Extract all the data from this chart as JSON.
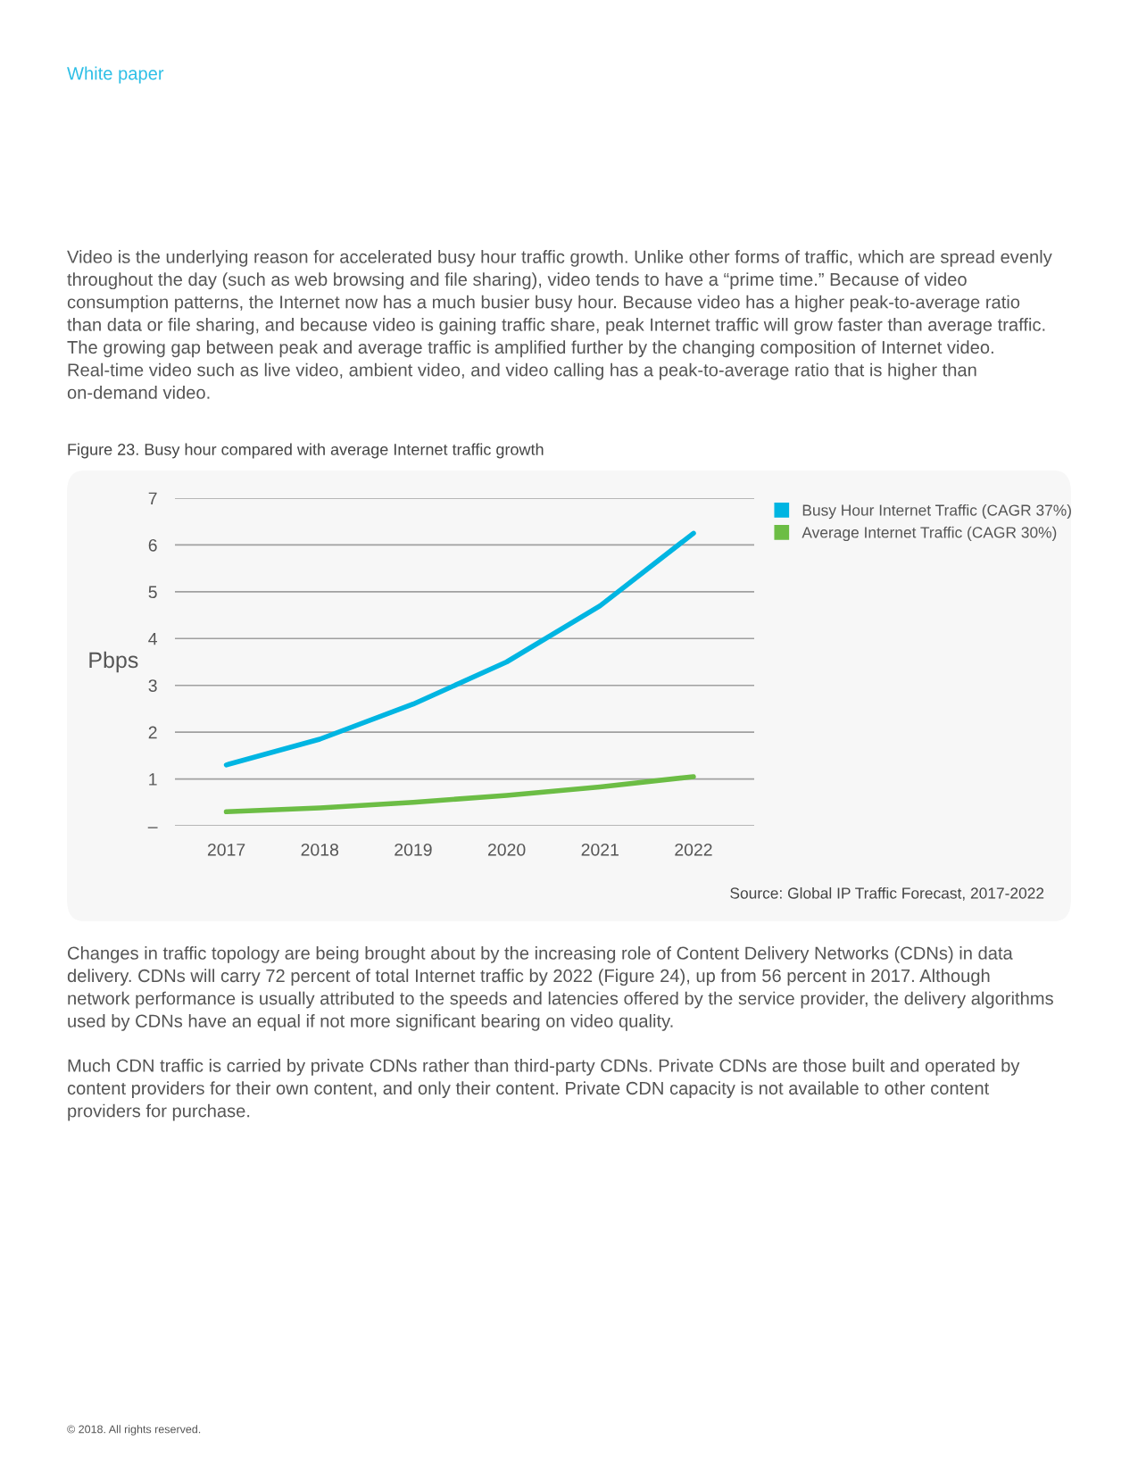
{
  "chart_data": {
    "type": "line",
    "title": "Figure 23. Busy hour compared with average Internet traffic growth",
    "ylabel": "Pbps",
    "categories": [
      "2017",
      "2018",
      "2019",
      "2020",
      "2021",
      "2022"
    ],
    "series": [
      {
        "name": "Busy Hour Internet Traffic (CAGR 37%)",
        "color": "#00b5e2",
        "values": [
          1.3,
          1.85,
          2.6,
          3.5,
          4.7,
          6.25
        ]
      },
      {
        "name": "Average Internet Traffic (CAGR 30%)",
        "color": "#6cbd45",
        "values": [
          0.3,
          0.38,
          0.5,
          0.65,
          0.83,
          1.05
        ]
      }
    ],
    "ylim": [
      0,
      7
    ],
    "yticks": [
      {
        "value": 0,
        "label": "–"
      },
      1,
      2,
      3,
      4,
      5,
      6,
      7
    ],
    "grid": "y",
    "legend": "top right",
    "marker": "none",
    "line_style": "solid",
    "annotations": [
      "White paper",
      "Video is the underlying reason for accelerated busy hour traffic growth. Unlike other forms of traffic, which are spread evenly throughout the day (such as web browsing and file sharing), video tends to have a “prime time.” Because of video consumption patterns, the Internet now has a much busier busy hour. Because video has a higher peak-to-average ratio than data or file sharing, and because video is gaining traffic share, peak Internet traffic will grow faster than average traffic. The growing gap between peak and average traffic is amplified further by the changing composition of Internet video. Real-time video such as live video, ambient video, and video calling has a peak-to-average ratio that is higher than on-demand video.",
      "Source: Global IP Traffic Forecast, 2017-2022",
      "Changes in traffic topology are being brought about by the increasing role of Content Delivery Networks (CDNs) in data delivery. CDNs will carry 72 percent of total Internet traffic by 2022 (Figure 24), up from 56 percent in 2017. Although network performance is usually attributed to the speeds and latencies offered by the service provider, the delivery algorithms used by CDNs have an equal if not more significant bearing on video quality.",
      "Much CDN traffic is carried by private CDNs rather than third-party CDNs. Private CDNs are those built and operated by content providers for their own content, and only their content. Private CDN capacity is not available to other content providers for purchase.",
      "© 2018. All rights reserved."
    ]
  }
}
